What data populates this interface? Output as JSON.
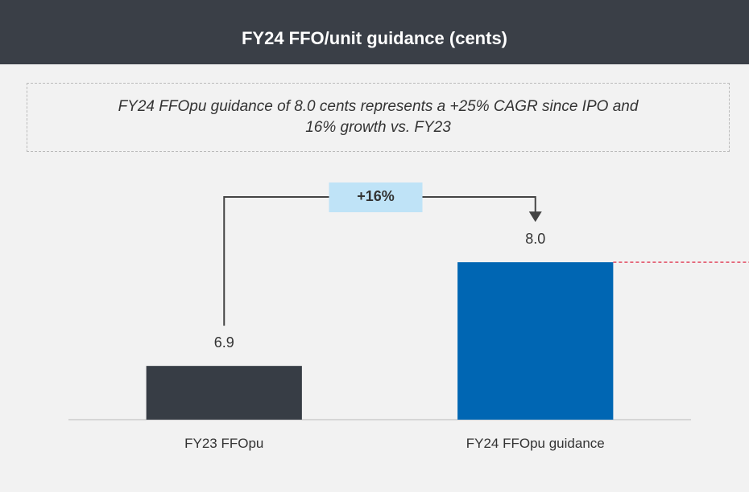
{
  "chart_data": {
    "type": "bar",
    "title": "FY24 FFO/unit guidance (cents)",
    "subtitle": "FY24 FFOpu guidance of 8.0 cents represents a +25% CAGR since IPO and 16% growth vs. FY23",
    "categories": [
      "FY23 FFOpu",
      "FY24 FFOpu guidance"
    ],
    "values": [
      6.9,
      8.0
    ],
    "value_labels": [
      "6.9",
      "8.0"
    ],
    "colors": [
      "#373d45",
      "#0066b3"
    ],
    "ylim": [
      6.33,
      8.82
    ],
    "annotation": "+16%"
  }
}
